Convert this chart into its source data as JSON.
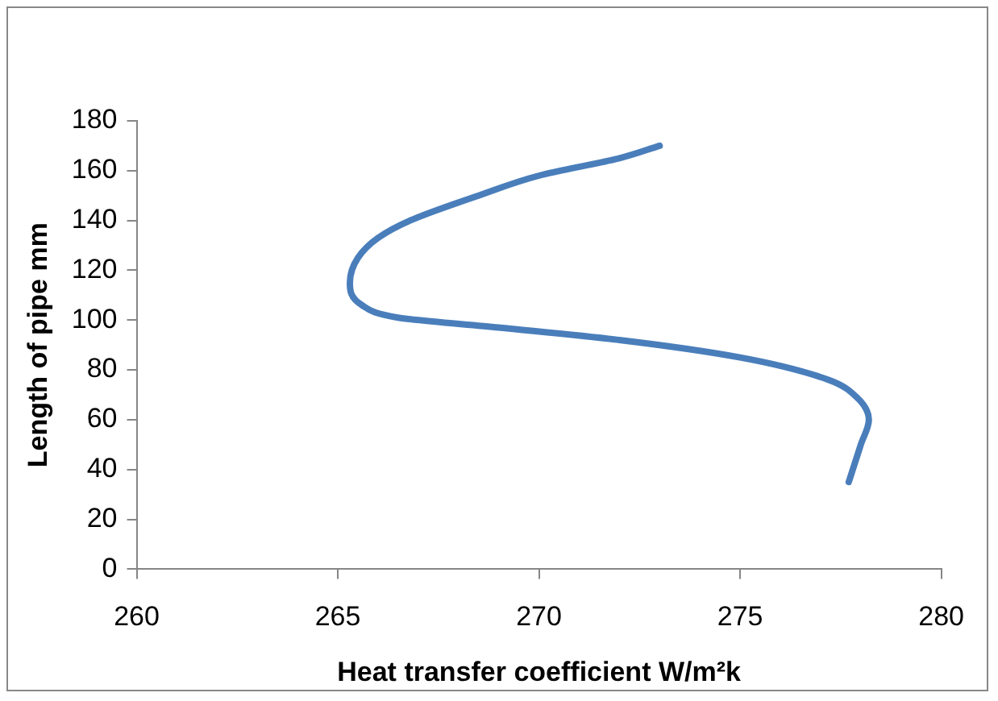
{
  "chart_data": {
    "type": "line",
    "xlabel": "Heat transfer coefficient W/m²k",
    "ylabel": "Length of pipe mm",
    "x": [
      277.7,
      278.0,
      278.2,
      277.9,
      277.2,
      275.0,
      272.0,
      269.0,
      266.5,
      265.6,
      265.3,
      265.5,
      266.0,
      266.8,
      268.5,
      270.0,
      272.0,
      273.0
    ],
    "series": [
      {
        "color": "#4a7ebb",
        "values": [
          35,
          50,
          60,
          69,
          76,
          85,
          92,
          97,
          101,
          106,
          115,
          125,
          133,
          140,
          150,
          158,
          165,
          170
        ]
      }
    ],
    "xlim": [
      260,
      280
    ],
    "xticks": [
      260,
      265,
      270,
      275,
      280
    ],
    "ylim": [
      0,
      180
    ],
    "yticks": [
      0,
      20,
      40,
      60,
      80,
      100,
      120,
      140,
      160,
      180
    ],
    "grid": false,
    "legend": false,
    "marker": "none",
    "line_style": "solid"
  }
}
